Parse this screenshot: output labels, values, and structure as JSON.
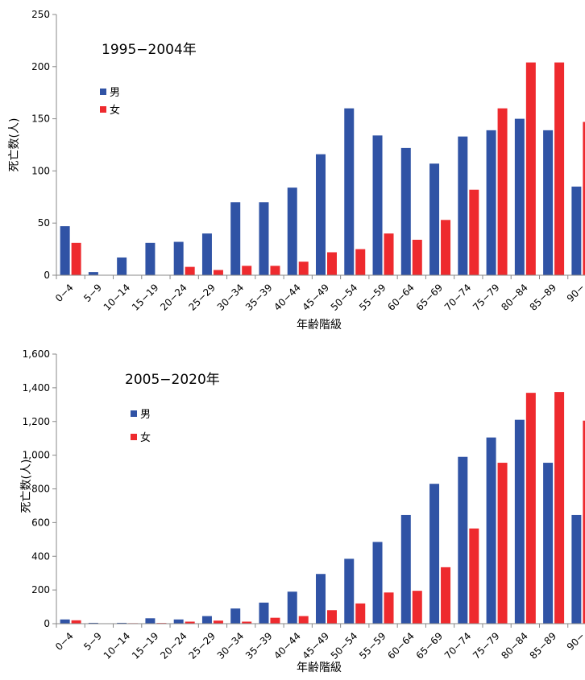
{
  "colors": {
    "male": "#3053a5",
    "female": "#ee2a2e",
    "axis": "#888888"
  },
  "chart_data": [
    {
      "type": "bar",
      "title": "1995−2004年",
      "xlabel": "年齢階級",
      "ylabel": "死亡数(人)",
      "ylim": [
        0,
        250
      ],
      "yticks": [
        0,
        50,
        100,
        150,
        200,
        250
      ],
      "ytick_labels": [
        "0",
        "50",
        "100",
        "150",
        "200",
        "250"
      ],
      "categories": [
        "0−4",
        "5−9",
        "10−14",
        "15−19",
        "20−24",
        "25−29",
        "30−34",
        "35−39",
        "40−44",
        "45−49",
        "50−54",
        "55−59",
        "60−64",
        "65−69",
        "70−74",
        "75−79",
        "80−84",
        "85−89",
        "90−"
      ],
      "series": [
        {
          "name": "男",
          "color": "#3053a5",
          "values": [
            47,
            3,
            17,
            31,
            32,
            40,
            70,
            70,
            84,
            116,
            160,
            134,
            122,
            107,
            133,
            139,
            150,
            139,
            85
          ]
        },
        {
          "name": "女",
          "color": "#ee2a2e",
          "values": [
            31,
            0,
            0,
            0,
            8,
            5,
            9,
            9,
            13,
            22,
            25,
            40,
            34,
            53,
            82,
            160,
            204,
            204,
            147
          ]
        }
      ],
      "grid": false,
      "legend_position": "upper-left"
    },
    {
      "type": "bar",
      "title": "2005−2020年",
      "xlabel": "年齢階級",
      "ylabel": "死亡数(人)",
      "ylim": [
        0,
        1600
      ],
      "yticks": [
        0,
        200,
        400,
        600,
        800,
        1000,
        1200,
        1400,
        1600
      ],
      "ytick_labels": [
        "0",
        "200",
        "400",
        "600",
        "800",
        "1,000",
        "1,200",
        "1,400",
        "1,600"
      ],
      "categories": [
        "0−4",
        "5−9",
        "10−14",
        "15−19",
        "20−24",
        "25−29",
        "30−34",
        "35−39",
        "40−44",
        "45−49",
        "50−54",
        "55−59",
        "60−64",
        "65−69",
        "70−74",
        "75−79",
        "80−84",
        "85−89",
        "90−"
      ],
      "series": [
        {
          "name": "男",
          "color": "#3053a5",
          "values": [
            25,
            5,
            5,
            32,
            25,
            45,
            90,
            125,
            190,
            295,
            385,
            485,
            645,
            830,
            990,
            1105,
            1210,
            955,
            645
          ]
        },
        {
          "name": "女",
          "color": "#ee2a2e",
          "values": [
            20,
            2,
            3,
            4,
            12,
            18,
            12,
            35,
            45,
            80,
            120,
            185,
            195,
            335,
            565,
            955,
            1370,
            1375,
            1205
          ]
        }
      ],
      "grid": false,
      "legend_position": "upper-left"
    }
  ]
}
